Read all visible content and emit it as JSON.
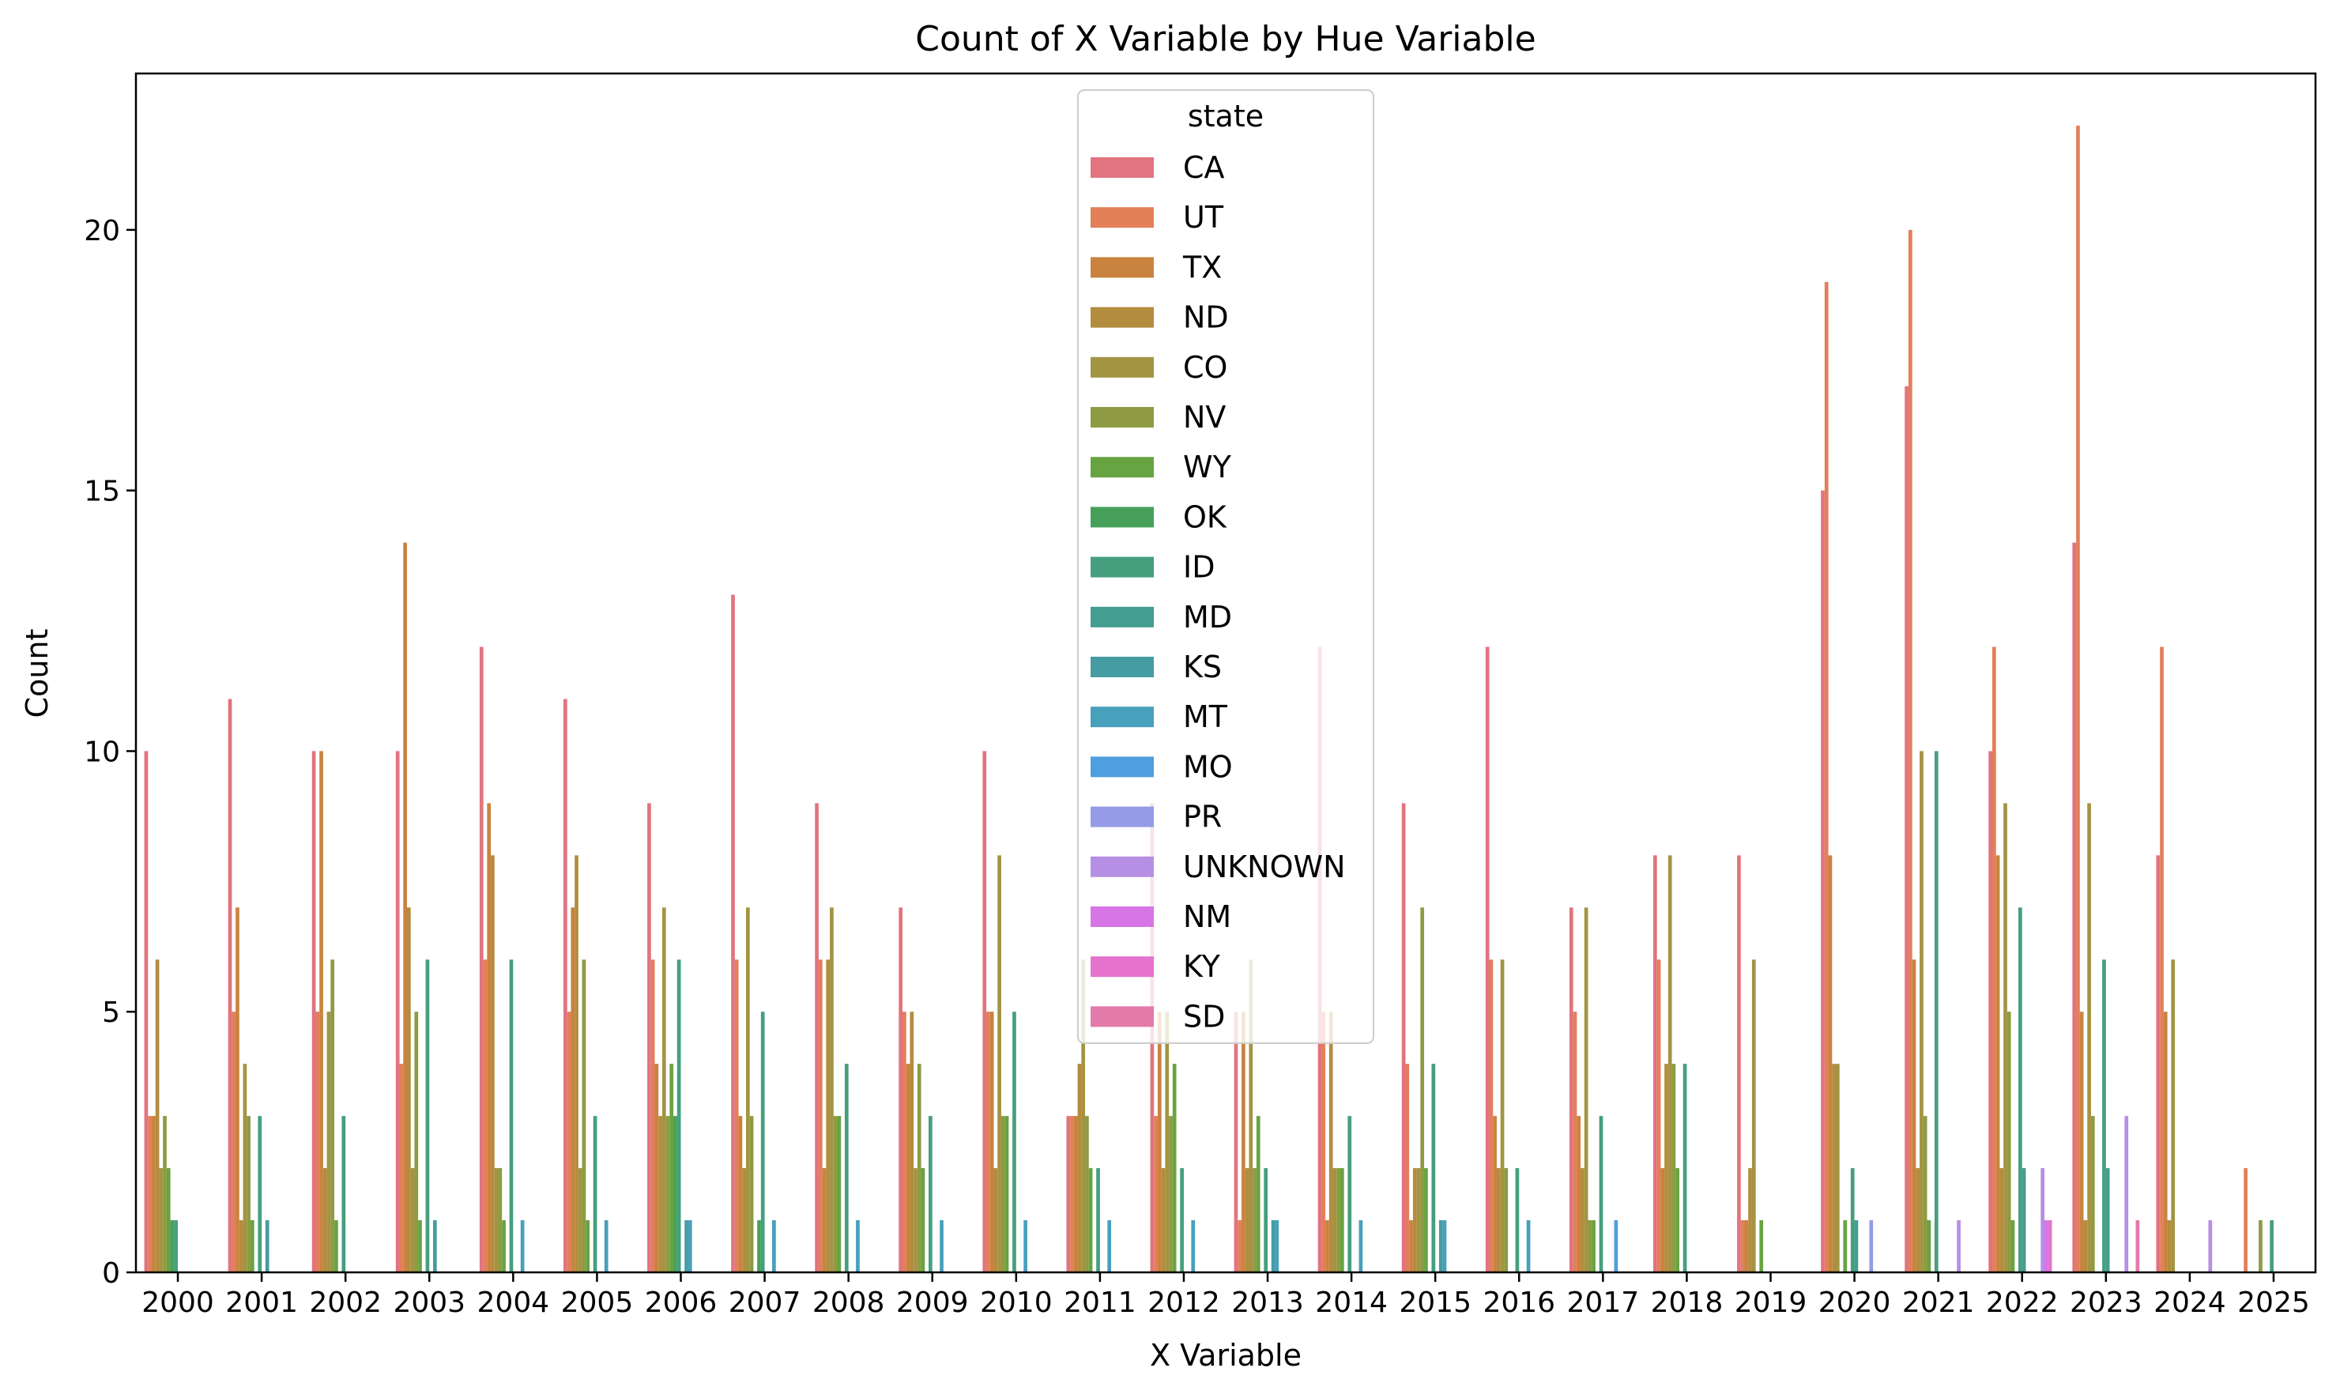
{
  "chart_data": {
    "type": "bar",
    "title": "Count of X Variable by Hue Variable",
    "xlabel": "X Variable",
    "ylabel": "Count",
    "ylim": [
      0,
      23
    ],
    "yticks": [
      0,
      5,
      10,
      15,
      20
    ],
    "grid": false,
    "legend": {
      "title": "state",
      "placement": "upper-center"
    },
    "categories": [
      "2000",
      "2001",
      "2002",
      "2003",
      "2004",
      "2005",
      "2006",
      "2007",
      "2008",
      "2009",
      "2010",
      "2011",
      "2012",
      "2013",
      "2014",
      "2015",
      "2016",
      "2017",
      "2018",
      "2019",
      "2020",
      "2021",
      "2022",
      "2023",
      "2024",
      "2025"
    ],
    "series": [
      {
        "name": "CA",
        "color": "#e1747f",
        "values": [
          10,
          11,
          10,
          10,
          12,
          11,
          9,
          13,
          9,
          7,
          10,
          3,
          9,
          5,
          12,
          9,
          12,
          7,
          8,
          8,
          15,
          17,
          10,
          14,
          8,
          0
        ]
      },
      {
        "name": "UT",
        "color": "#e37f59",
        "values": [
          3,
          5,
          5,
          4,
          6,
          5,
          6,
          6,
          6,
          5,
          5,
          3,
          3,
          1,
          5,
          4,
          6,
          5,
          6,
          1,
          19,
          20,
          12,
          22,
          12,
          2
        ]
      },
      {
        "name": "TX",
        "color": "#c9833f",
        "values": [
          3,
          7,
          10,
          14,
          9,
          7,
          4,
          3,
          2,
          4,
          5,
          3,
          5,
          5,
          1,
          1,
          3,
          3,
          2,
          1,
          8,
          6,
          8,
          5,
          5,
          0
        ]
      },
      {
        "name": "ND",
        "color": "#b48c3f",
        "values": [
          6,
          1,
          2,
          7,
          8,
          8,
          3,
          2,
          6,
          5,
          2,
          4,
          2,
          2,
          5,
          2,
          2,
          2,
          4,
          2,
          4,
          2,
          2,
          1,
          1,
          0
        ]
      },
      {
        "name": "CO",
        "color": "#a39442",
        "values": [
          2,
          4,
          5,
          2,
          2,
          2,
          7,
          7,
          7,
          2,
          8,
          6,
          5,
          6,
          2,
          2,
          6,
          7,
          8,
          6,
          4,
          10,
          9,
          9,
          6,
          0
        ]
      },
      {
        "name": "NV",
        "color": "#8e9b43",
        "values": [
          3,
          3,
          6,
          5,
          2,
          6,
          3,
          3,
          3,
          4,
          3,
          3,
          3,
          2,
          2,
          7,
          2,
          1,
          4,
          0,
          0,
          3,
          5,
          3,
          0,
          1
        ]
      },
      {
        "name": "WY",
        "color": "#68a342",
        "values": [
          2,
          1,
          1,
          1,
          1,
          1,
          4,
          0,
          3,
          2,
          3,
          2,
          4,
          3,
          2,
          2,
          0,
          1,
          2,
          1,
          1,
          1,
          1,
          0,
          0,
          0
        ]
      },
      {
        "name": "OK",
        "color": "#46a05a",
        "values": [
          1,
          0,
          0,
          0,
          0,
          0,
          3,
          1,
          0,
          0,
          0,
          0,
          0,
          0,
          0,
          0,
          0,
          0,
          0,
          0,
          0,
          0,
          0,
          0,
          0,
          0
        ]
      },
      {
        "name": "ID",
        "color": "#459f7e",
        "values": [
          1,
          3,
          3,
          6,
          6,
          3,
          6,
          5,
          4,
          3,
          5,
          2,
          2,
          2,
          3,
          4,
          2,
          3,
          4,
          0,
          2,
          10,
          7,
          6,
          0,
          1
        ]
      },
      {
        "name": "MD",
        "color": "#449d91",
        "values": [
          0,
          0,
          0,
          0,
          0,
          0,
          0,
          0,
          0,
          0,
          0,
          0,
          0,
          0,
          0,
          0,
          0,
          0,
          0,
          0,
          1,
          0,
          2,
          2,
          0,
          0
        ]
      },
      {
        "name": "KS",
        "color": "#459ca2",
        "values": [
          0,
          1,
          0,
          1,
          0,
          0,
          1,
          0,
          0,
          0,
          0,
          0,
          0,
          1,
          0,
          1,
          0,
          0,
          0,
          0,
          0,
          0,
          0,
          0,
          0,
          0
        ]
      },
      {
        "name": "MT",
        "color": "#47a0bc",
        "values": [
          0,
          0,
          0,
          0,
          1,
          1,
          1,
          1,
          1,
          1,
          1,
          1,
          1,
          1,
          1,
          1,
          1,
          0,
          0,
          0,
          0,
          0,
          0,
          0,
          0,
          0
        ]
      },
      {
        "name": "MO",
        "color": "#4f9ee0",
        "values": [
          0,
          0,
          0,
          0,
          0,
          0,
          0,
          0,
          0,
          0,
          0,
          0,
          0,
          0,
          0,
          0,
          0,
          1,
          0,
          0,
          0,
          0,
          0,
          0,
          0,
          0
        ]
      },
      {
        "name": "PR",
        "color": "#959be6",
        "values": [
          0,
          0,
          0,
          0,
          0,
          0,
          0,
          0,
          0,
          0,
          0,
          0,
          0,
          0,
          0,
          0,
          0,
          0,
          0,
          0,
          1,
          0,
          0,
          0,
          0,
          0
        ]
      },
      {
        "name": "UNKNOWN",
        "color": "#b58fe4",
        "values": [
          0,
          0,
          0,
          0,
          0,
          0,
          0,
          0,
          0,
          0,
          0,
          0,
          0,
          0,
          0,
          0,
          0,
          0,
          0,
          0,
          0,
          1,
          2,
          3,
          1,
          0
        ]
      },
      {
        "name": "NM",
        "color": "#d774e6",
        "values": [
          0,
          0,
          0,
          0,
          0,
          0,
          0,
          0,
          0,
          0,
          0,
          0,
          0,
          0,
          0,
          0,
          0,
          0,
          0,
          0,
          0,
          0,
          1,
          0,
          0,
          0
        ]
      },
      {
        "name": "KY",
        "color": "#e572cd",
        "values": [
          0,
          0,
          0,
          0,
          0,
          0,
          0,
          0,
          0,
          0,
          0,
          0,
          0,
          0,
          0,
          0,
          0,
          0,
          0,
          0,
          0,
          0,
          1,
          0,
          0,
          0
        ]
      },
      {
        "name": "SD",
        "color": "#e47aaa",
        "values": [
          0,
          0,
          0,
          0,
          0,
          0,
          0,
          0,
          0,
          0,
          0,
          0,
          0,
          0,
          0,
          0,
          0,
          0,
          0,
          0,
          0,
          0,
          0,
          1,
          0,
          0
        ]
      }
    ]
  }
}
